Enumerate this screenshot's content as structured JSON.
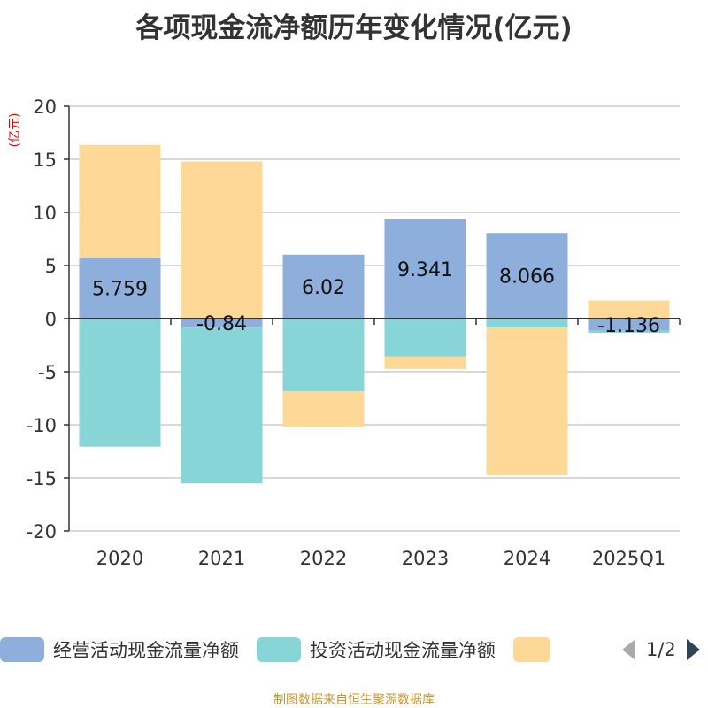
{
  "title": "各项现金流净额历年变化情况(亿元)",
  "chart_data": {
    "type": "bar",
    "stacked": true,
    "title": "各项现金流净额历年变化情况(亿元)",
    "ylabel": "(亿元)",
    "ylim": [
      -20,
      20
    ],
    "yticks": [
      "20",
      "15",
      "10",
      "5",
      "0",
      "-5",
      "-10",
      "-15",
      "-20"
    ],
    "categories": [
      "2020",
      "2021",
      "2022",
      "2023",
      "2024",
      "2025Q1"
    ],
    "series": [
      {
        "name": "经营活动现金流量净额",
        "color": "#8eaedb",
        "values": [
          5.759,
          -0.84,
          6.02,
          9.341,
          8.066,
          -1.136
        ],
        "labels": [
          "5.759",
          "-0.84",
          "6.02",
          "9.341",
          "8.066",
          "-1.136"
        ]
      },
      {
        "name": "投资活动现金流量净额",
        "color": "#88d5d8",
        "values": [
          -12.06,
          -14.68,
          -6.85,
          -3.57,
          -0.84,
          -0.2
        ]
      },
      {
        "name": "",
        "color": "#fed897",
        "values": [
          10.59,
          14.79,
          -3.32,
          -1.17,
          -13.92,
          1.7
        ]
      }
    ],
    "grid": true,
    "legend_position": "bottom"
  },
  "legend": {
    "page": "1/2"
  },
  "source": "制图数据来自恒生聚源数据库"
}
